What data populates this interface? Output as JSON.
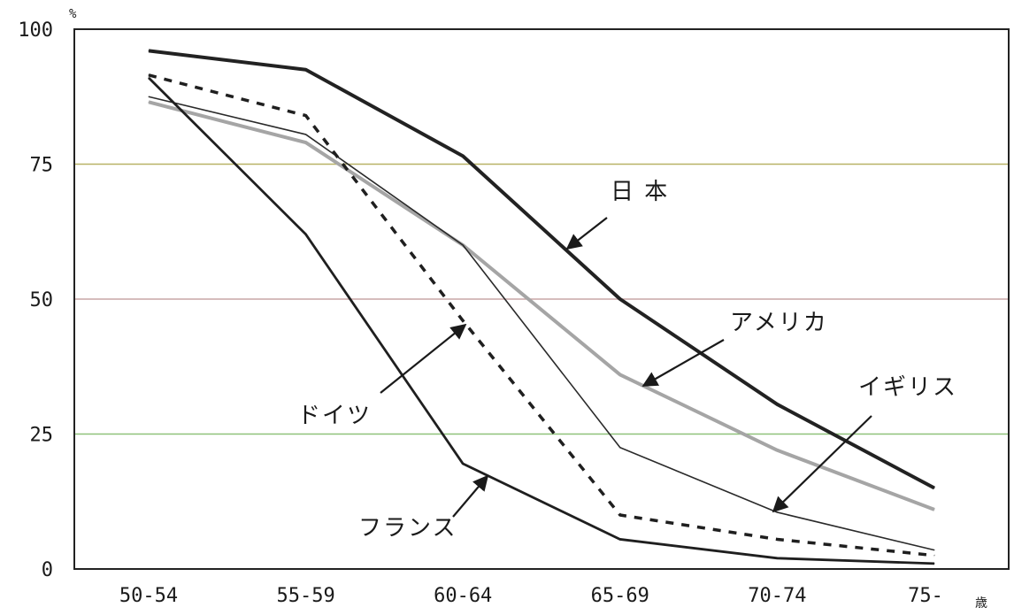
{
  "chart_data": {
    "type": "line",
    "title": "",
    "xlabel": "",
    "ylabel": "",
    "y_unit": "%",
    "x_unit": "歳",
    "categories": [
      "50-54",
      "55-59",
      "60-64",
      "65-69",
      "70-74",
      "75-"
    ],
    "ylim": [
      0,
      100
    ],
    "yticks": [
      "0",
      "25",
      "50",
      "75",
      "100"
    ],
    "grid": true,
    "legend": "none (lines labeled by arrow annotations)",
    "series": [
      {
        "name": "日 本",
        "style": "thick-solid",
        "color": "#222222",
        "values": [
          96,
          92.5,
          76.5,
          50,
          30.5,
          15
        ]
      },
      {
        "name": "アメリカ",
        "style": "gray-solid",
        "color": "#a5a5a5",
        "values": [
          86.5,
          79,
          60,
          36,
          22,
          11
        ]
      },
      {
        "name": "イギリス",
        "style": "thin-solid",
        "color": "#2a2a2a",
        "values": [
          87.5,
          80.5,
          60,
          22.5,
          10.5,
          3.5
        ]
      },
      {
        "name": "ドイツ",
        "style": "dashed",
        "color": "#1f1f1f",
        "values": [
          91.5,
          84,
          46,
          10,
          5.5,
          2.5
        ]
      },
      {
        "name": "フランス",
        "style": "solid",
        "color": "#1f1f1f",
        "values": [
          91,
          62,
          19.5,
          5.5,
          2,
          1
        ]
      }
    ],
    "gridline_colors": [
      "#ffffff",
      "#8fc27a",
      "#c8a6a6",
      "#b8b266",
      "#9a9a9a"
    ],
    "annotations": [
      {
        "text": "日 本"
      },
      {
        "text": "アメリカ"
      },
      {
        "text": "イギリス"
      },
      {
        "text": "ドイツ"
      },
      {
        "text": "フランス"
      }
    ]
  }
}
